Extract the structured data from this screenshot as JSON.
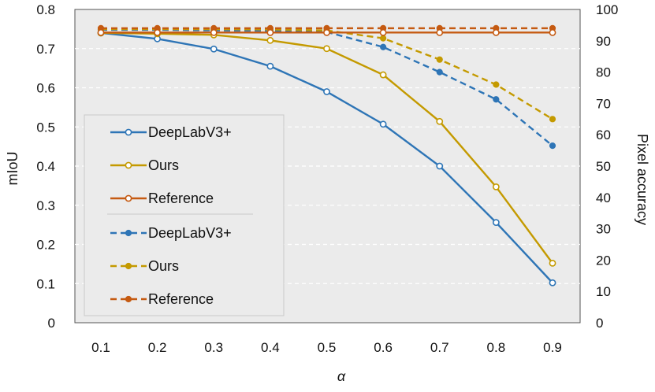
{
  "chart_data": {
    "type": "line",
    "title": "",
    "xlabel": "α",
    "ylabel": "mIoU",
    "y2label": "Pixel accuracy",
    "x": [
      0.1,
      0.2,
      0.3,
      0.4,
      0.5,
      0.6,
      0.7,
      0.8,
      0.9
    ],
    "x_tick_labels": [
      "0.1",
      "0.2",
      "0.3",
      "0.4",
      "0.5",
      "0.6",
      "0.7",
      "0.8",
      "0.9"
    ],
    "ylim": [
      0,
      0.8
    ],
    "y_ticks": [
      0,
      0.1,
      0.2,
      0.3,
      0.4,
      0.5,
      0.6,
      0.7,
      0.8
    ],
    "y_tick_labels": [
      "0",
      "0.1",
      "0.2",
      "0.3",
      "0.4",
      "0.5",
      "0.6",
      "0.7",
      "0.8"
    ],
    "y2lim": [
      0,
      100
    ],
    "y2_ticks": [
      0,
      10,
      20,
      30,
      40,
      50,
      60,
      70,
      80,
      90,
      100
    ],
    "y2_tick_labels": [
      "0",
      "10",
      "20",
      "30",
      "40",
      "50",
      "60",
      "70",
      "80",
      "90",
      "100"
    ],
    "grid": "horizontal dashed",
    "legend_position": "left",
    "series": [
      {
        "name": "DeepLabV3+",
        "axis": "left",
        "style": "solid",
        "marker": "hollow",
        "color": "#2E75B6",
        "values": [
          0.74,
          0.725,
          0.699,
          0.655,
          0.59,
          0.507,
          0.4,
          0.256,
          0.102
        ]
      },
      {
        "name": "Ours",
        "axis": "left",
        "style": "solid",
        "marker": "hollow",
        "color": "#C49A00",
        "values": [
          0.74,
          0.738,
          0.735,
          0.721,
          0.7,
          0.633,
          0.514,
          0.347,
          0.152
        ]
      },
      {
        "name": "Reference",
        "axis": "left",
        "style": "solid",
        "marker": "hollow",
        "color": "#C55A11",
        "values": [
          0.741,
          0.741,
          0.741,
          0.741,
          0.741,
          0.741,
          0.741,
          0.741,
          0.741
        ]
      },
      {
        "name": "DeepLabV3+",
        "axis": "right",
        "style": "dashed",
        "marker": "filled",
        "color": "#2E75B6",
        "values": [
          93.5,
          93.5,
          93.3,
          93.2,
          92.8,
          88,
          80,
          71.3,
          56.5
        ]
      },
      {
        "name": "Ours",
        "axis": "right",
        "style": "dashed",
        "marker": "filled",
        "color": "#C49A00",
        "values": [
          93.7,
          93.7,
          93.7,
          93.6,
          93.3,
          90.8,
          84,
          76,
          65
        ]
      },
      {
        "name": "Reference",
        "axis": "right",
        "style": "dashed",
        "marker": "filled",
        "color": "#C55A11",
        "values": [
          94,
          94,
          94,
          94,
          94,
          94,
          94,
          94,
          94
        ]
      }
    ]
  },
  "colors": {
    "plot_background": "#EBEBEB",
    "grid": "#FFFFFF",
    "blue": "#2E75B6",
    "gold": "#C49A00",
    "orange": "#C55A11"
  }
}
